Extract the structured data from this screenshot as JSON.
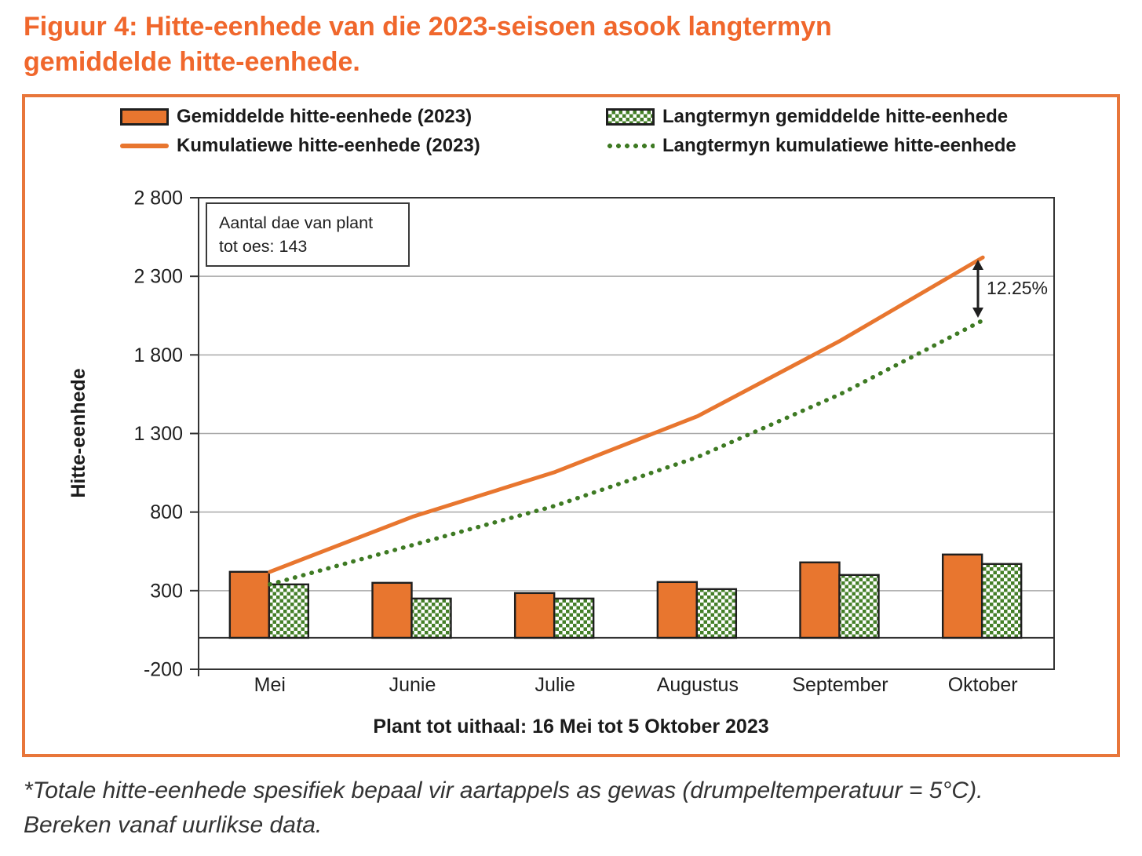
{
  "figure": {
    "title_line1": "Figuur 4: Hitte-eenhede van die 2023-seisoen asook langtermyn",
    "title_line2": "gemiddelde hitte-eenhede.",
    "footnote_line1": "*Totale hitte-eenhede spesifiek bepaal vir aartappels as gewas (drumpeltemperatuur = 5°C).",
    "footnote_line2": "Bereken vanaf uurlikse data."
  },
  "annotation_box": {
    "line1": "Aantal dae van plant",
    "line2": "tot oes: 143"
  },
  "delta_annotation": {
    "label": "12.25%"
  },
  "colors": {
    "orange": "#E8762F",
    "title_orange": "#F0672C",
    "frame_orange": "#E8763A",
    "green": "#3E7A23",
    "checker_green": "#447F28",
    "grid": "#A8A8A8",
    "axis": "#333333",
    "text": "#1f1f1f"
  },
  "chart_data": {
    "type": "combo-bar-line",
    "categories": [
      "Mei",
      "Junie",
      "Julie",
      "Augustus",
      "September",
      "Oktober"
    ],
    "series": [
      {
        "name": "Gemiddelde hitte-eenhede (2023)",
        "type": "bar",
        "style": "solid-orange",
        "values": [
          420,
          350,
          285,
          355,
          480,
          530
        ]
      },
      {
        "name": "Kumulatiewe hitte-eenhede (2023)",
        "type": "line",
        "style": "solid-orange",
        "values": [
          420,
          770,
          1055,
          1410,
          1890,
          2420
        ]
      },
      {
        "name": "Langtermyn gemiddelde hitte-eenhede",
        "type": "bar",
        "style": "green-checker",
        "values": [
          340,
          250,
          250,
          310,
          400,
          470
        ]
      },
      {
        "name": "Langtermyn kumulatiewe hitte-eenhede",
        "type": "line",
        "style": "dotted-green",
        "values": [
          340,
          590,
          840,
          1150,
          1550,
          2020
        ]
      }
    ],
    "ylabel": "Hitte-eenhede",
    "xlabel": "Plant tot uithaal: 16 Mei tot 5 Oktober 2023",
    "ylim": [
      -200,
      2800
    ],
    "ytick_step": 500,
    "ytick_labels": [
      "-200",
      "300",
      "800",
      "1 300",
      "1 800",
      "2 300",
      "2 800"
    ],
    "grid": true,
    "legend_position": "top"
  }
}
